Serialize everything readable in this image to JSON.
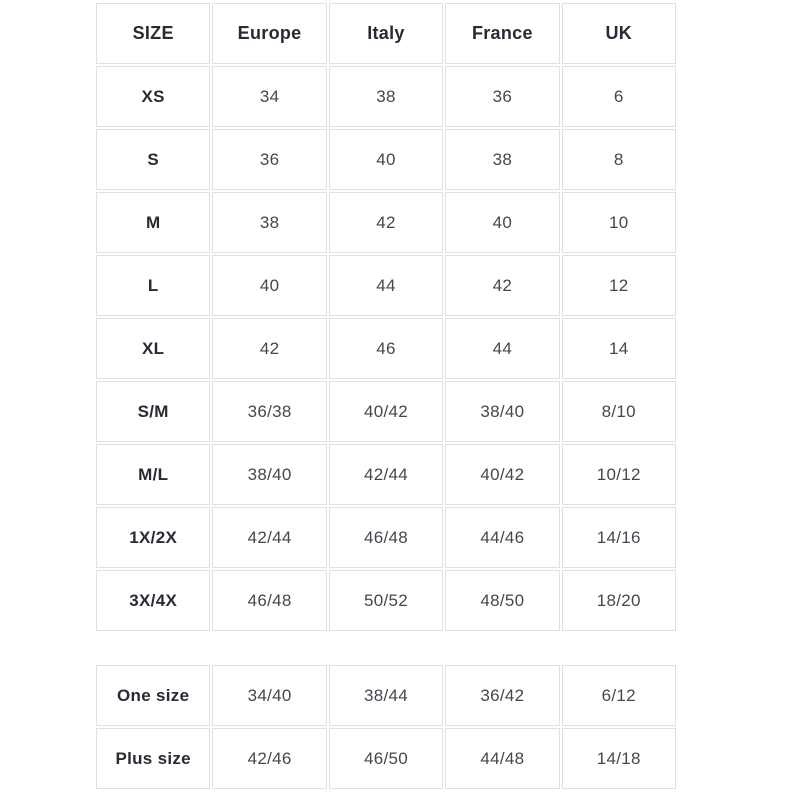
{
  "colors": {
    "background": "#ffffff",
    "grid_border": "#e0e0e0",
    "header_text": "#272b33",
    "value_text": "#43484f"
  },
  "chart_data": {
    "type": "table",
    "title": "",
    "columns": [
      "SIZE",
      "Europe",
      "Italy",
      "France",
      "UK"
    ],
    "main_rows": [
      {
        "label": "XS",
        "values": [
          "34",
          "38",
          "36",
          "6"
        ]
      },
      {
        "label": "S",
        "values": [
          "36",
          "40",
          "38",
          "8"
        ]
      },
      {
        "label": "M",
        "values": [
          "38",
          "42",
          "40",
          "10"
        ]
      },
      {
        "label": "L",
        "values": [
          "40",
          "44",
          "42",
          "12"
        ]
      },
      {
        "label": "XL",
        "values": [
          "42",
          "46",
          "44",
          "14"
        ]
      },
      {
        "label": "S/M",
        "values": [
          "36/38",
          "40/42",
          "38/40",
          "8/10"
        ]
      },
      {
        "label": "M/L",
        "values": [
          "38/40",
          "42/44",
          "40/42",
          "10/12"
        ]
      },
      {
        "label": "1X/2X",
        "values": [
          "42/44",
          "46/48",
          "44/46",
          "14/16"
        ]
      },
      {
        "label": "3X/4X",
        "values": [
          "46/48",
          "50/52",
          "48/50",
          "18/20"
        ]
      }
    ],
    "extra_rows": [
      {
        "label": "One size",
        "values": [
          "34/40",
          "38/44",
          "36/42",
          "6/12"
        ]
      },
      {
        "label": "Plus size",
        "values": [
          "42/46",
          "46/50",
          "44/48",
          "14/18"
        ]
      }
    ]
  }
}
